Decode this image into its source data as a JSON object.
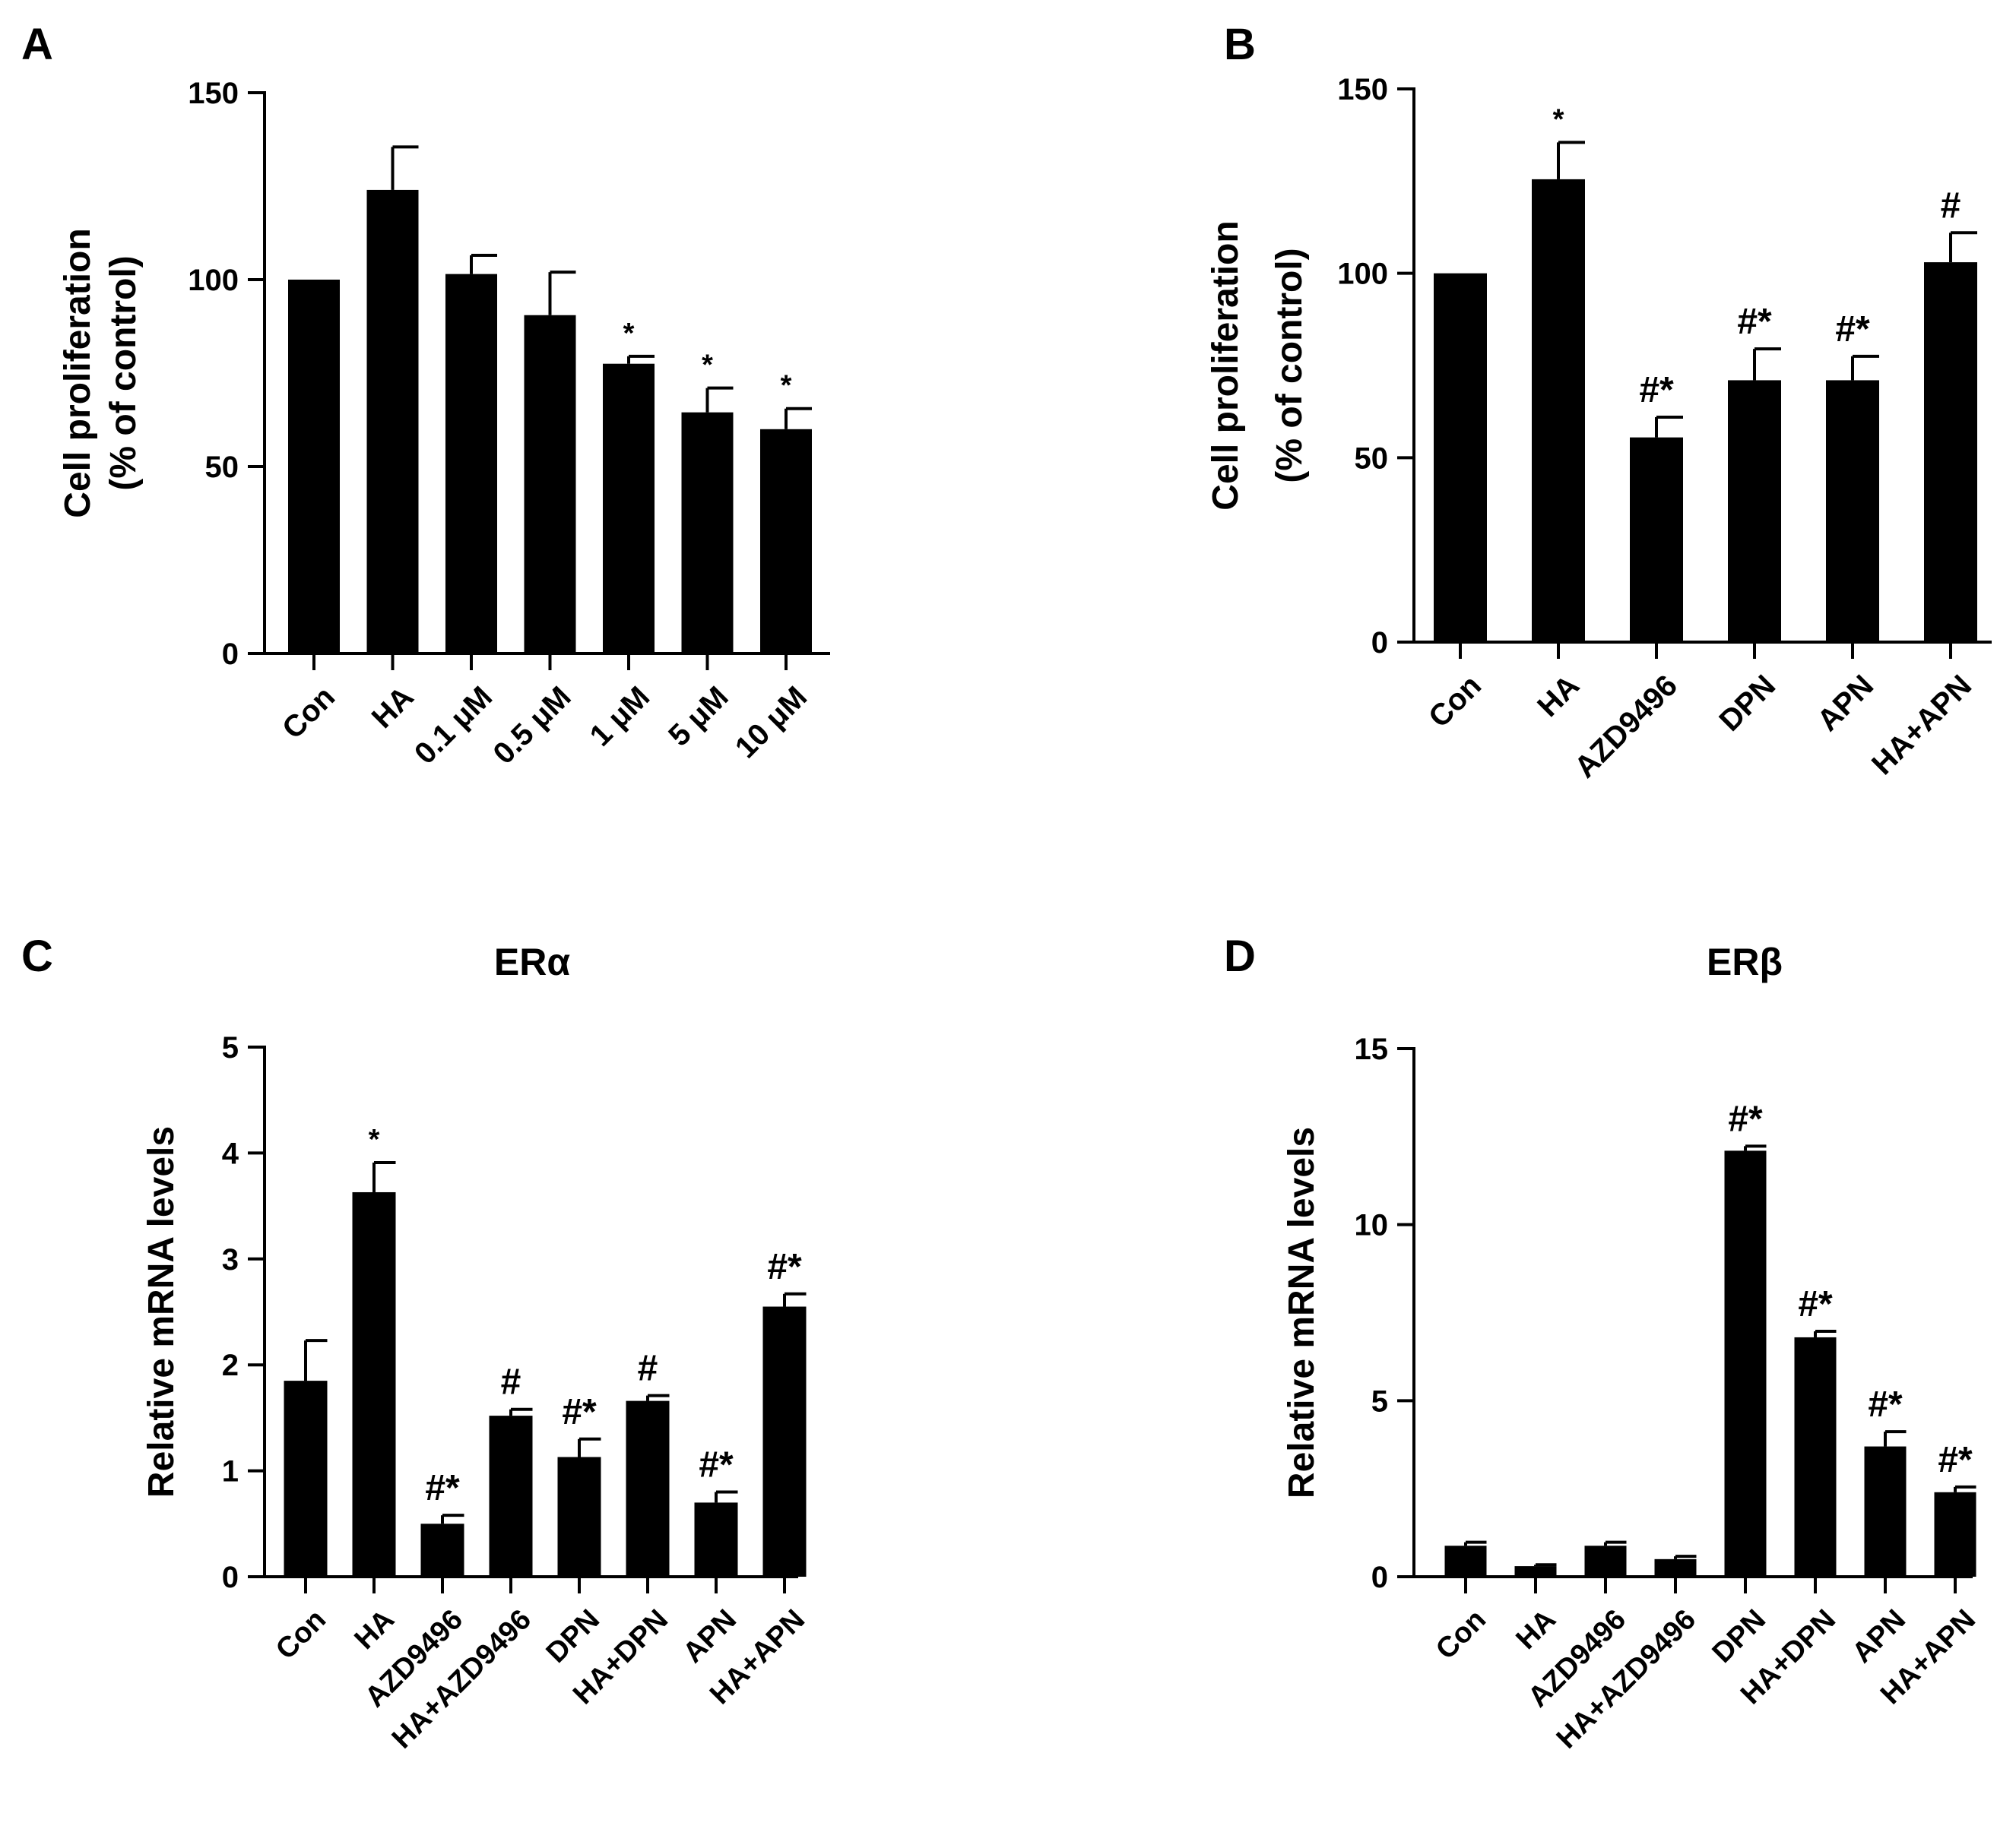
{
  "chart_data": [
    {
      "panel": "A",
      "type": "bar",
      "title": "",
      "xlabel": "",
      "ylabel": [
        "Cell proliferation",
        "(% of control)"
      ],
      "ylim": [
        0,
        150
      ],
      "yticks": [
        0,
        50,
        100,
        150
      ],
      "categories": [
        "Con",
        "HA",
        "0.1 μM",
        "0.5 μM",
        "1 μM",
        "5 μM",
        "10 μM"
      ],
      "values": [
        100,
        124,
        101.5,
        90.5,
        77.5,
        64.5,
        60
      ],
      "errors": [
        0,
        11.5,
        5,
        11.5,
        2,
        6.5,
        5.5
      ],
      "annotations": [
        "",
        "",
        "",
        "",
        "*",
        "*",
        "*"
      ]
    },
    {
      "panel": "B",
      "type": "bar",
      "title": "",
      "xlabel": "",
      "ylabel": [
        "Cell proliferation",
        "(% of control)"
      ],
      "ylim": [
        0,
        150
      ],
      "yticks": [
        0,
        50,
        100,
        150
      ],
      "categories": [
        "Con",
        "HA",
        "AZD9496",
        "DPN",
        "APN",
        "HA+APN"
      ],
      "values": [
        100,
        125.5,
        55.5,
        71,
        71,
        103
      ],
      "errors": [
        0,
        10,
        5.5,
        8.5,
        6.5,
        8
      ],
      "annotations": [
        "",
        "*",
        "#*",
        "#*",
        "#*",
        "#"
      ]
    },
    {
      "panel": "C",
      "type": "bar",
      "title": "ERα",
      "xlabel": "",
      "ylabel": [
        "Relative mRNA levels"
      ],
      "ylim": [
        0,
        5
      ],
      "yticks": [
        0,
        1,
        2,
        3,
        4,
        5
      ],
      "categories": [
        "Con",
        "HA",
        "AZD9496",
        "HA+AZD9496",
        "DPN",
        "HA+DPN",
        "APN",
        "HA+APN"
      ],
      "values": [
        1.85,
        3.63,
        0.5,
        1.52,
        1.13,
        1.66,
        0.7,
        2.55
      ],
      "errors": [
        0.38,
        0.28,
        0.08,
        0.06,
        0.17,
        0.05,
        0.1,
        0.12
      ],
      "annotations": [
        "",
        "*",
        "#*",
        "#",
        "#*",
        "#",
        "#*",
        "#*"
      ]
    },
    {
      "panel": "D",
      "type": "bar",
      "title": "ERβ",
      "xlabel": "",
      "ylabel": [
        "Relative mRNA levels"
      ],
      "ylim": [
        0,
        15
      ],
      "yticks": [
        0,
        5,
        10,
        15
      ],
      "categories": [
        "Con",
        "HA",
        "AZD9496",
        "HA+AZD9496",
        "DPN",
        "HA+DPN",
        "APN",
        "HA+APN"
      ],
      "values": [
        0.88,
        0.3,
        0.88,
        0.5,
        12.1,
        6.8,
        3.7,
        2.4
      ],
      "errors": [
        0.1,
        0.04,
        0.1,
        0.08,
        0.13,
        0.17,
        0.42,
        0.15
      ],
      "annotations": [
        "",
        "",
        "",
        "",
        "#*",
        "#*",
        "#*",
        "#*"
      ]
    }
  ]
}
